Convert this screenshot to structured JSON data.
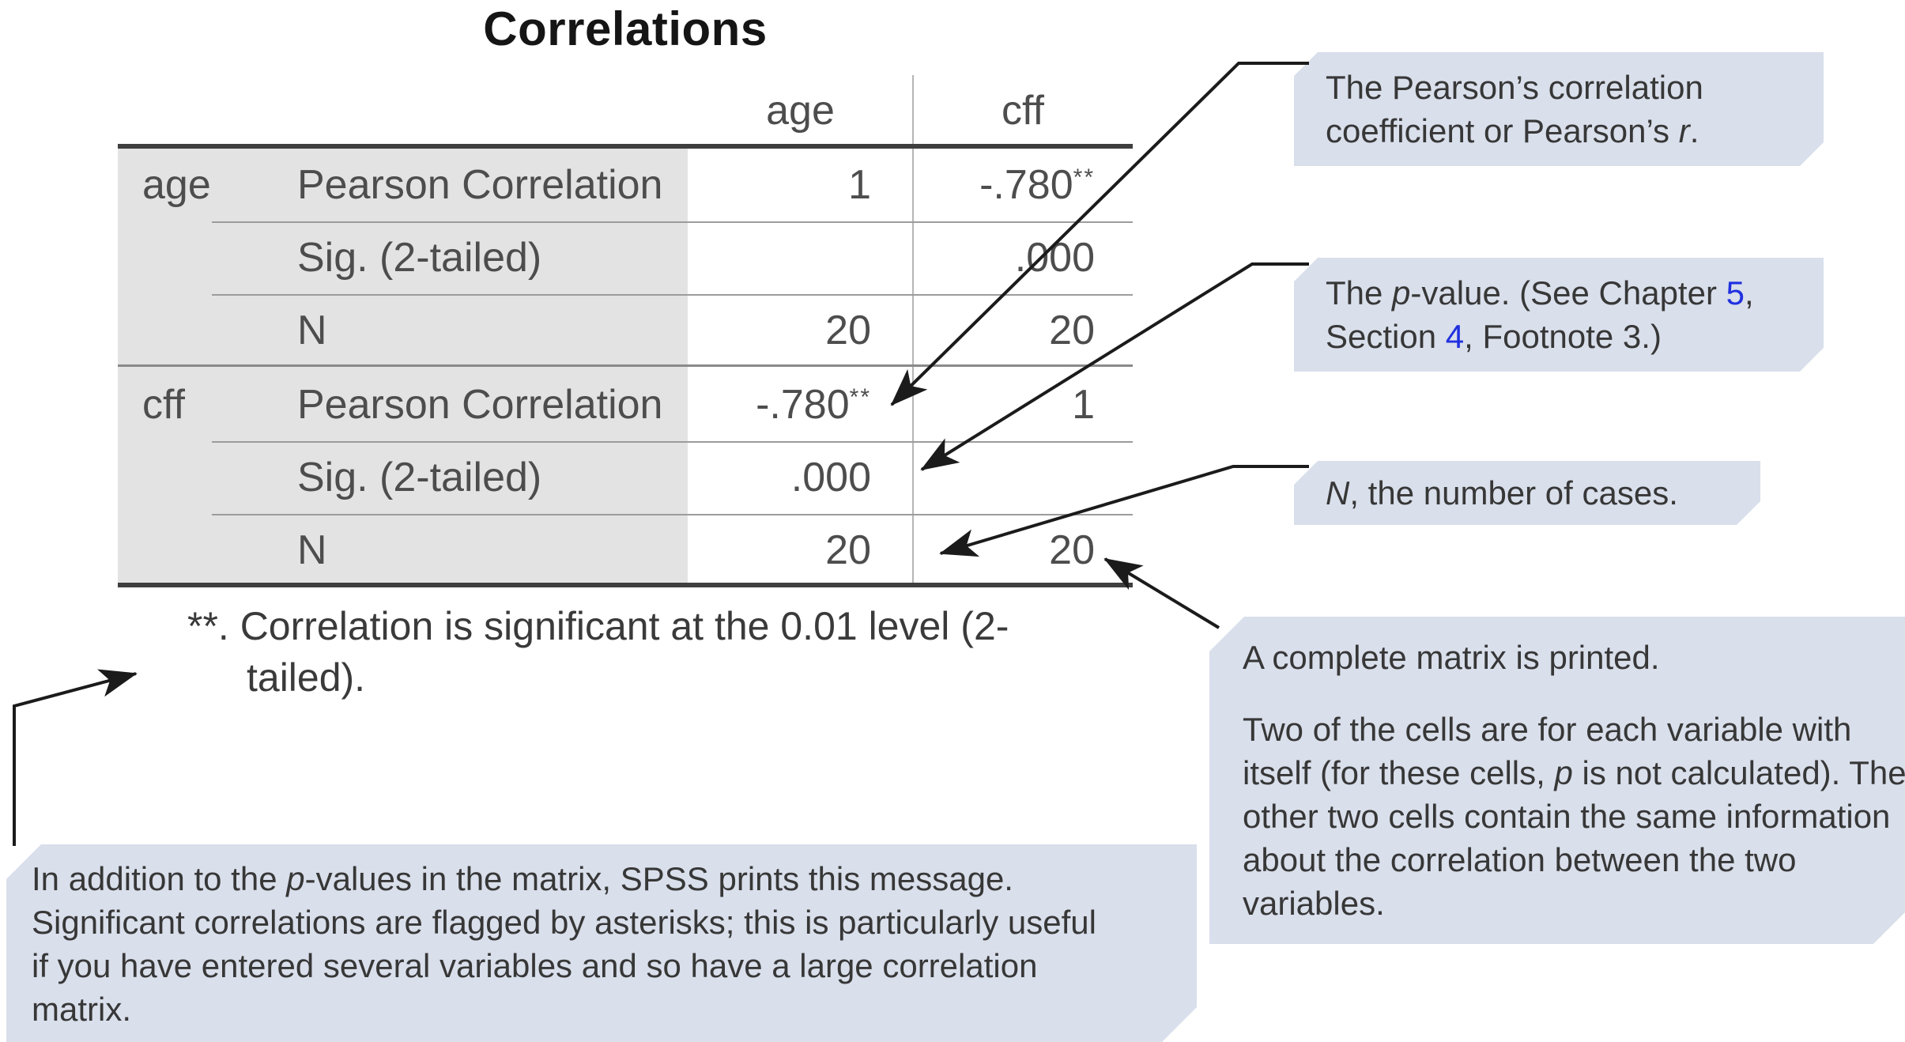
{
  "title": "Correlations",
  "table": {
    "col_headers": [
      "age",
      "cff"
    ],
    "sections": [
      {
        "label": "age",
        "rows": [
          {
            "stat": "Pearson Correlation",
            "age_v": "1",
            "age_s": "",
            "cff_v": "-.780",
            "cff_s": "**"
          },
          {
            "stat": "Sig. (2-tailed)",
            "age_v": "",
            "age_s": "",
            "cff_v": ".000",
            "cff_s": ""
          },
          {
            "stat": "N",
            "age_v": "20",
            "age_s": "",
            "cff_v": "20",
            "cff_s": ""
          }
        ]
      },
      {
        "label": "cff",
        "rows": [
          {
            "stat": "Pearson Correlation",
            "age_v": "-.780",
            "age_s": "**",
            "cff_v": "1",
            "cff_s": ""
          },
          {
            "stat": "Sig. (2-tailed)",
            "age_v": ".000",
            "age_s": "",
            "cff_v": "",
            "cff_s": ""
          },
          {
            "stat": "N",
            "age_v": "20",
            "age_s": "",
            "cff_v": "20",
            "cff_s": ""
          }
        ]
      }
    ],
    "footnote_line1": "**. Correlation is significant at the 0.01 level (2-",
    "footnote_line2": "tailed)."
  },
  "callouts": {
    "pearson_r": {
      "lines": [
        {
          "segs": [
            {
              "t": "The Pearson’s correlation"
            }
          ]
        },
        {
          "segs": [
            {
              "t": "coefficient or Pearson’s "
            },
            {
              "t": "r",
              "it": true
            },
            {
              "t": "."
            }
          ]
        }
      ]
    },
    "p_value": {
      "lines": [
        {
          "segs": [
            {
              "t": "The "
            },
            {
              "t": "p",
              "it": true
            },
            {
              "t": "-value. (See Chapter "
            },
            {
              "t": "5",
              "link": true
            },
            {
              "t": ","
            }
          ]
        },
        {
          "segs": [
            {
              "t": "Section "
            },
            {
              "t": "4",
              "link": true
            },
            {
              "t": ", Footnote 3.)"
            }
          ]
        }
      ]
    },
    "n_cases": {
      "lines": [
        {
          "segs": [
            {
              "t": "N",
              "it": true
            },
            {
              "t": ", the number of cases."
            }
          ]
        }
      ]
    },
    "complete_matrix": {
      "lines": [
        {
          "segs": [
            {
              "t": "A complete matrix is printed."
            }
          ]
        },
        {
          "gap": true,
          "segs": [
            {
              "t": "Two of the cells are for each variable with"
            }
          ]
        },
        {
          "segs": [
            {
              "t": "itself (for these cells, "
            },
            {
              "t": "p",
              "it": true
            },
            {
              "t": " is not calculated). The"
            }
          ]
        },
        {
          "segs": [
            {
              "t": "other two cells contain the same information"
            }
          ]
        },
        {
          "segs": [
            {
              "t": "about the correlation between the two"
            }
          ]
        },
        {
          "segs": [
            {
              "t": "variables."
            }
          ]
        }
      ]
    },
    "significance_message": {
      "lines": [
        {
          "segs": [
            {
              "t": "In addition to the "
            },
            {
              "t": "p",
              "it": true
            },
            {
              "t": "-values in the matrix, SPSS prints this message."
            }
          ]
        },
        {
          "segs": [
            {
              "t": "Significant correlations are flagged by asterisks; this is particularly useful"
            }
          ]
        },
        {
          "segs": [
            {
              "t": "if you have entered several variables and so have a large correlation"
            }
          ]
        },
        {
          "segs": [
            {
              "t": "matrix."
            }
          ]
        }
      ]
    }
  },
  "colors": {
    "callout_bg": "#d9dfeb",
    "link_blue": "#2030df",
    "table_gray": "#e3e3e3",
    "arrow": "#1b1b1b"
  }
}
